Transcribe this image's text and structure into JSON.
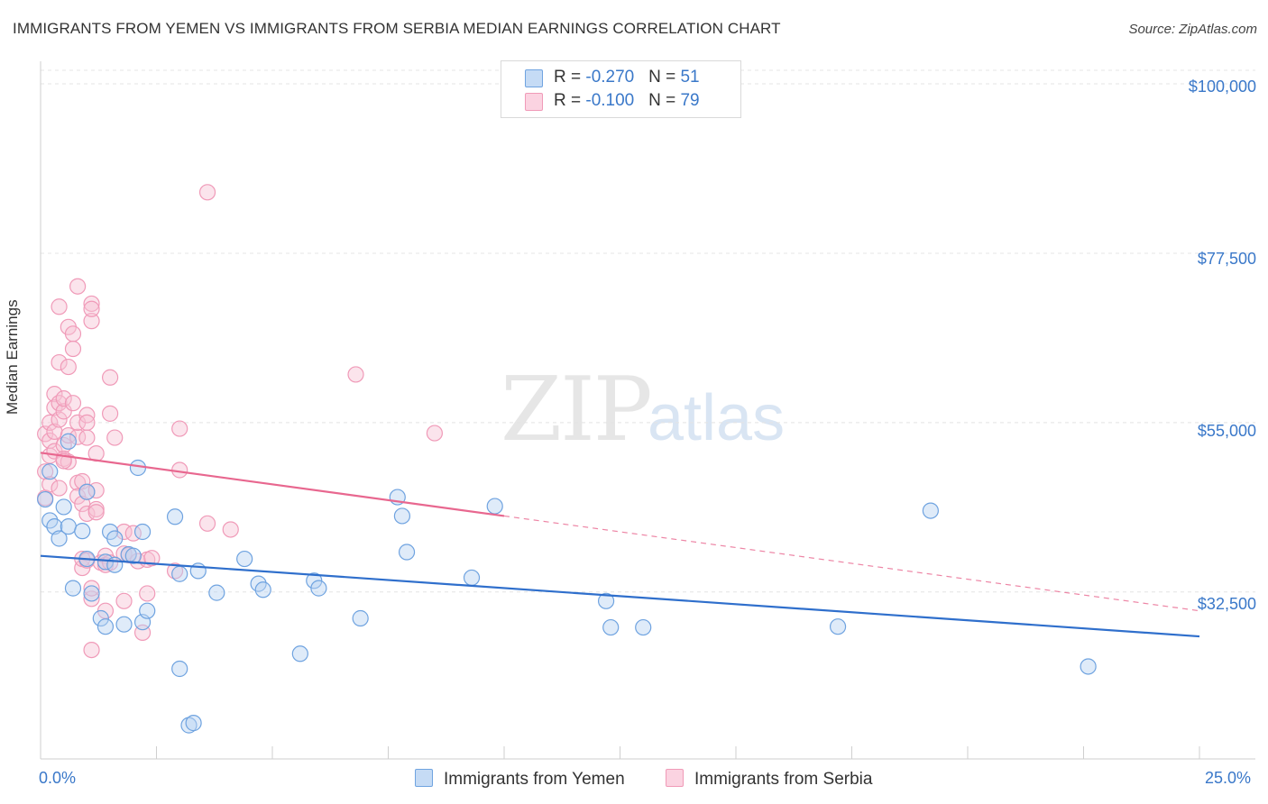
{
  "title": "IMMIGRANTS FROM YEMEN VS IMMIGRANTS FROM SERBIA MEDIAN EARNINGS CORRELATION CHART",
  "source": "Source: ZipAtlas.com",
  "watermark": {
    "zip": "ZIP",
    "atlas": "atlas"
  },
  "colors": {
    "blue": "#6fa3e0",
    "blue_line": "#2f6fcc",
    "pink": "#f09ab8",
    "pink_line": "#e8678f",
    "axis_text": "#3a78c9"
  },
  "legend": {
    "rows": [
      {
        "r_label": "R = ",
        "r_value": "-0.270",
        "n_label": "N = ",
        "n_value": "51"
      },
      {
        "r_label": "R = ",
        "r_value": "-0.100",
        "n_label": "N = ",
        "n_value": "79"
      }
    ]
  },
  "bottom_legend": {
    "yemen": "Immigrants from Yemen",
    "serbia": "Immigrants from Serbia"
  },
  "chart_data": {
    "type": "scatter",
    "title": "IMMIGRANTS FROM YEMEN VS IMMIGRANTS FROM SERBIA MEDIAN EARNINGS CORRELATION CHART",
    "xlabel": "",
    "ylabel": "Median Earnings",
    "xlim": [
      0,
      25
    ],
    "ylim": [
      12000,
      103000
    ],
    "x_tick_labels": [
      "0.0%",
      "25.0%"
    ],
    "y_ticks": [
      32500,
      55000,
      77500,
      100000
    ],
    "y_tick_labels": [
      "$32,500",
      "$55,000",
      "$77,500",
      "$100,000"
    ],
    "series": [
      {
        "name": "Immigrants from Yemen",
        "color": "#6fa3e0",
        "trend": {
          "x0": 0,
          "y0": 37300,
          "x1": 25,
          "y1": 26600,
          "dash_from_x": 25
        },
        "points": [
          [
            0.1,
            44800
          ],
          [
            0.2,
            48500
          ],
          [
            0.2,
            42000
          ],
          [
            0.3,
            41200
          ],
          [
            0.4,
            39600
          ],
          [
            0.5,
            43800
          ],
          [
            0.6,
            41200
          ],
          [
            0.6,
            52500
          ],
          [
            0.7,
            33000
          ],
          [
            0.9,
            40600
          ],
          [
            1.0,
            36900
          ],
          [
            1.0,
            45800
          ],
          [
            1.1,
            32300
          ],
          [
            1.3,
            29000
          ],
          [
            1.4,
            27900
          ],
          [
            1.4,
            36500
          ],
          [
            1.5,
            40500
          ],
          [
            1.6,
            39600
          ],
          [
            1.6,
            36100
          ],
          [
            1.8,
            28200
          ],
          [
            1.9,
            37500
          ],
          [
            2.0,
            37300
          ],
          [
            2.1,
            49000
          ],
          [
            2.2,
            28500
          ],
          [
            2.2,
            40500
          ],
          [
            2.3,
            30000
          ],
          [
            2.9,
            42500
          ],
          [
            3.0,
            34900
          ],
          [
            3.0,
            22300
          ],
          [
            3.2,
            14800
          ],
          [
            3.3,
            15100
          ],
          [
            3.4,
            35300
          ],
          [
            3.8,
            32400
          ],
          [
            4.4,
            36900
          ],
          [
            4.7,
            33600
          ],
          [
            4.8,
            32800
          ],
          [
            5.6,
            24300
          ],
          [
            5.9,
            34000
          ],
          [
            6.0,
            33000
          ],
          [
            6.9,
            29000
          ],
          [
            7.7,
            45100
          ],
          [
            7.8,
            42600
          ],
          [
            7.9,
            37800
          ],
          [
            9.3,
            34400
          ],
          [
            9.8,
            43900
          ],
          [
            12.2,
            31300
          ],
          [
            12.3,
            27800
          ],
          [
            13.0,
            27800
          ],
          [
            17.2,
            27900
          ],
          [
            19.2,
            43300
          ],
          [
            22.6,
            22600
          ]
        ]
      },
      {
        "name": "Immigrants from Serbia",
        "color": "#f09ab8",
        "trend": {
          "x0": 0,
          "y0": 51000,
          "x1": 25,
          "y1": 30000,
          "dash_from_x": 10.0
        },
        "points": [
          [
            0.1,
            45000
          ],
          [
            0.1,
            48500
          ],
          [
            0.1,
            53500
          ],
          [
            0.2,
            50600
          ],
          [
            0.2,
            52600
          ],
          [
            0.2,
            46800
          ],
          [
            0.2,
            55000
          ],
          [
            0.3,
            58800
          ],
          [
            0.3,
            57000
          ],
          [
            0.3,
            53800
          ],
          [
            0.3,
            51200
          ],
          [
            0.4,
            55400
          ],
          [
            0.4,
            57600
          ],
          [
            0.4,
            63000
          ],
          [
            0.4,
            70400
          ],
          [
            0.4,
            46300
          ],
          [
            0.5,
            52000
          ],
          [
            0.5,
            50200
          ],
          [
            0.5,
            56500
          ],
          [
            0.5,
            58200
          ],
          [
            0.6,
            67700
          ],
          [
            0.6,
            62400
          ],
          [
            0.6,
            53300
          ],
          [
            0.6,
            49800
          ],
          [
            0.7,
            66800
          ],
          [
            0.7,
            64800
          ],
          [
            0.7,
            57600
          ],
          [
            0.8,
            73100
          ],
          [
            0.8,
            53100
          ],
          [
            0.8,
            47000
          ],
          [
            0.8,
            45200
          ],
          [
            0.8,
            55000
          ],
          [
            0.9,
            44200
          ],
          [
            0.9,
            47200
          ],
          [
            0.9,
            35700
          ],
          [
            0.9,
            36900
          ],
          [
            1.0,
            56000
          ],
          [
            1.0,
            55000
          ],
          [
            1.0,
            53000
          ],
          [
            1.0,
            45800
          ],
          [
            1.0,
            42900
          ],
          [
            1.0,
            36700
          ],
          [
            1.1,
            70800
          ],
          [
            1.1,
            68500
          ],
          [
            1.1,
            70100
          ],
          [
            1.1,
            31600
          ],
          [
            1.1,
            33000
          ],
          [
            1.1,
            24800
          ],
          [
            1.2,
            46000
          ],
          [
            1.2,
            43500
          ],
          [
            1.2,
            43100
          ],
          [
            1.2,
            50900
          ],
          [
            1.3,
            36400
          ],
          [
            1.4,
            37300
          ],
          [
            1.4,
            36100
          ],
          [
            1.4,
            30000
          ],
          [
            1.5,
            61000
          ],
          [
            1.5,
            56200
          ],
          [
            1.5,
            36400
          ],
          [
            1.6,
            53000
          ],
          [
            1.8,
            40500
          ],
          [
            1.8,
            37600
          ],
          [
            1.8,
            31300
          ],
          [
            1.9,
            37400
          ],
          [
            2.0,
            40300
          ],
          [
            2.1,
            36600
          ],
          [
            2.2,
            27100
          ],
          [
            2.3,
            36800
          ],
          [
            2.3,
            32300
          ],
          [
            2.4,
            37000
          ],
          [
            2.9,
            35300
          ],
          [
            3.0,
            48700
          ],
          [
            3.0,
            54200
          ],
          [
            3.6,
            85600
          ],
          [
            3.6,
            41600
          ],
          [
            4.1,
            40800
          ],
          [
            6.8,
            61400
          ],
          [
            8.5,
            53600
          ],
          [
            0.5,
            49900
          ]
        ]
      }
    ]
  }
}
